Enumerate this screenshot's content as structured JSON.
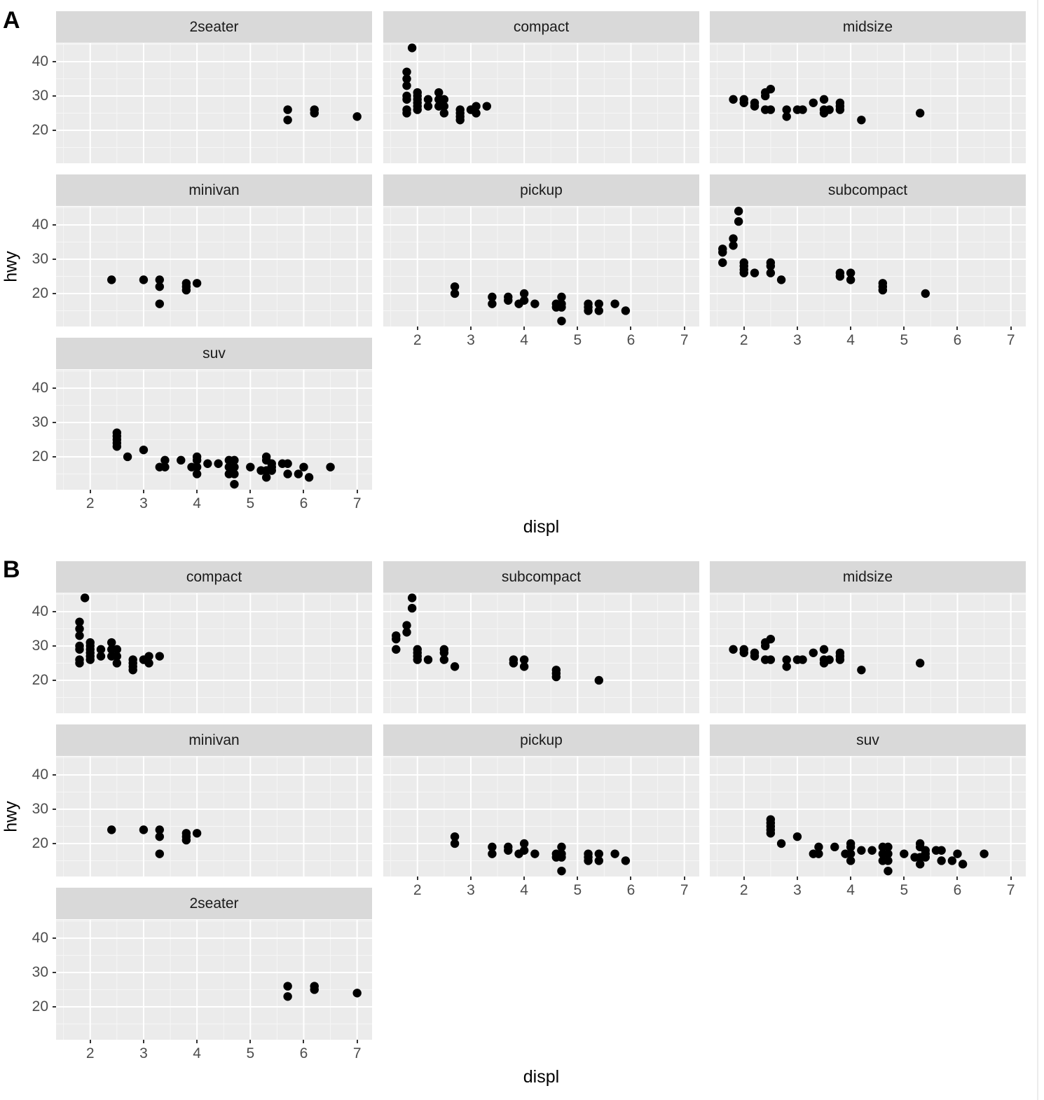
{
  "chart_data": [
    {
      "type": "scatter",
      "figure_label": "A",
      "title": "",
      "xlabel": "displ",
      "ylabel": "hwy",
      "xlim": [
        1.36,
        7.28
      ],
      "ylim": [
        10.4,
        45.3
      ],
      "x_ticks": [
        2,
        3,
        4,
        5,
        6,
        7
      ],
      "y_ticks": [
        20,
        30,
        40
      ],
      "grid": true,
      "facet_order": [
        "2seater",
        "compact",
        "midsize",
        "minivan",
        "pickup",
        "subcompact",
        "suv"
      ],
      "panels": [
        {
          "label": "2seater",
          "points": [
            [
              5.7,
              26
            ],
            [
              5.7,
              23
            ],
            [
              6.2,
              26
            ],
            [
              6.2,
              25
            ],
            [
              7.0,
              24
            ]
          ]
        },
        {
          "label": "compact",
          "points": [
            [
              1.8,
              37
            ],
            [
              1.8,
              35
            ],
            [
              1.8,
              33
            ],
            [
              1.8,
              29
            ],
            [
              1.8,
              30
            ],
            [
              1.8,
              26
            ],
            [
              1.8,
              25
            ],
            [
              1.9,
              44
            ],
            [
              2.0,
              31
            ],
            [
              2.0,
              30
            ],
            [
              2.0,
              29
            ],
            [
              2.0,
              28
            ],
            [
              2.0,
              27
            ],
            [
              2.0,
              26
            ],
            [
              2.2,
              29
            ],
            [
              2.2,
              27
            ],
            [
              2.4,
              31
            ],
            [
              2.4,
              29
            ],
            [
              2.4,
              27
            ],
            [
              2.5,
              29
            ],
            [
              2.5,
              27
            ],
            [
              2.5,
              25
            ],
            [
              2.8,
              26
            ],
            [
              2.8,
              25
            ],
            [
              2.8,
              24
            ],
            [
              2.8,
              23
            ],
            [
              3.0,
              26
            ],
            [
              3.1,
              27
            ],
            [
              3.1,
              25
            ],
            [
              3.3,
              27
            ]
          ]
        },
        {
          "label": "midsize",
          "points": [
            [
              1.8,
              29
            ],
            [
              2.0,
              29
            ],
            [
              2.0,
              28
            ],
            [
              2.2,
              28
            ],
            [
              2.2,
              27
            ],
            [
              2.4,
              31
            ],
            [
              2.4,
              30
            ],
            [
              2.5,
              32
            ],
            [
              2.4,
              26
            ],
            [
              2.5,
              26
            ],
            [
              2.8,
              26
            ],
            [
              2.8,
              24
            ],
            [
              3.0,
              26
            ],
            [
              3.1,
              26
            ],
            [
              3.3,
              28
            ],
            [
              3.5,
              29
            ],
            [
              3.5,
              26
            ],
            [
              3.5,
              25
            ],
            [
              3.6,
              26
            ],
            [
              3.8,
              28
            ],
            [
              3.8,
              27
            ],
            [
              3.8,
              26
            ],
            [
              4.2,
              23
            ],
            [
              5.3,
              25
            ]
          ]
        },
        {
          "label": "minivan",
          "points": [
            [
              2.4,
              24
            ],
            [
              3.0,
              24
            ],
            [
              3.3,
              24
            ],
            [
              3.3,
              22
            ],
            [
              3.3,
              17
            ],
            [
              3.8,
              23
            ],
            [
              3.8,
              22
            ],
            [
              3.8,
              21
            ],
            [
              4.0,
              23
            ]
          ]
        },
        {
          "label": "pickup",
          "points": [
            [
              2.7,
              22
            ],
            [
              2.7,
              20
            ],
            [
              3.4,
              19
            ],
            [
              3.4,
              17
            ],
            [
              3.7,
              19
            ],
            [
              3.7,
              18
            ],
            [
              3.9,
              17
            ],
            [
              4.0,
              20
            ],
            [
              4.0,
              18
            ],
            [
              4.2,
              17
            ],
            [
              4.6,
              17
            ],
            [
              4.6,
              16
            ],
            [
              4.7,
              19
            ],
            [
              4.7,
              17
            ],
            [
              4.7,
              16
            ],
            [
              4.7,
              12
            ],
            [
              5.2,
              17
            ],
            [
              5.2,
              16
            ],
            [
              5.2,
              15
            ],
            [
              5.4,
              17
            ],
            [
              5.4,
              15
            ],
            [
              5.7,
              17
            ],
            [
              5.9,
              15
            ]
          ]
        },
        {
          "label": "subcompact",
          "points": [
            [
              1.6,
              33
            ],
            [
              1.6,
              32
            ],
            [
              1.6,
              29
            ],
            [
              1.8,
              36
            ],
            [
              1.8,
              34
            ],
            [
              1.9,
              44
            ],
            [
              1.9,
              41
            ],
            [
              2.0,
              29
            ],
            [
              2.0,
              28
            ],
            [
              2.0,
              27
            ],
            [
              2.0,
              26
            ],
            [
              2.2,
              26
            ],
            [
              2.5,
              29
            ],
            [
              2.5,
              28
            ],
            [
              2.5,
              26
            ],
            [
              2.7,
              24
            ],
            [
              3.8,
              26
            ],
            [
              3.8,
              25
            ],
            [
              4.0,
              26
            ],
            [
              4.0,
              24
            ],
            [
              4.6,
              23
            ],
            [
              4.6,
              22
            ],
            [
              4.6,
              21
            ],
            [
              5.4,
              20
            ]
          ]
        },
        {
          "label": "suv",
          "points": [
            [
              2.5,
              27
            ],
            [
              2.5,
              26
            ],
            [
              2.5,
              25
            ],
            [
              2.5,
              24
            ],
            [
              2.5,
              23
            ],
            [
              2.7,
              20
            ],
            [
              3.0,
              22
            ],
            [
              3.3,
              17
            ],
            [
              3.4,
              19
            ],
            [
              3.4,
              17
            ],
            [
              3.7,
              19
            ],
            [
              3.9,
              17
            ],
            [
              4.0,
              20
            ],
            [
              4.0,
              19
            ],
            [
              4.0,
              17
            ],
            [
              4.0,
              15
            ],
            [
              4.2,
              18
            ],
            [
              4.4,
              18
            ],
            [
              4.6,
              19
            ],
            [
              4.6,
              17
            ],
            [
              4.6,
              15
            ],
            [
              4.7,
              19
            ],
            [
              4.7,
              17
            ],
            [
              4.7,
              15
            ],
            [
              4.7,
              12
            ],
            [
              5.0,
              17
            ],
            [
              5.2,
              16
            ],
            [
              5.3,
              20
            ],
            [
              5.3,
              19
            ],
            [
              5.3,
              16
            ],
            [
              5.3,
              14
            ],
            [
              5.4,
              18
            ],
            [
              5.4,
              17
            ],
            [
              5.4,
              16
            ],
            [
              5.6,
              18
            ],
            [
              5.7,
              18
            ],
            [
              5.7,
              15
            ],
            [
              5.9,
              15
            ],
            [
              6.0,
              17
            ],
            [
              6.1,
              14
            ],
            [
              6.5,
              17
            ]
          ]
        }
      ]
    },
    {
      "type": "scatter",
      "figure_label": "B",
      "title": "",
      "xlabel": "displ",
      "ylabel": "hwy",
      "xlim": [
        1.36,
        7.28
      ],
      "ylim": [
        10.4,
        45.3
      ],
      "x_ticks": [
        2,
        3,
        4,
        5,
        6,
        7
      ],
      "y_ticks": [
        20,
        30,
        40
      ],
      "grid": true,
      "facet_order": [
        "compact",
        "subcompact",
        "midsize",
        "minivan",
        "pickup",
        "suv",
        "2seater"
      ],
      "panels": [
        {
          "label": "compact",
          "same_as": "A.compact"
        },
        {
          "label": "subcompact",
          "same_as": "A.subcompact"
        },
        {
          "label": "midsize",
          "same_as": "A.midsize"
        },
        {
          "label": "minivan",
          "same_as": "A.minivan"
        },
        {
          "label": "pickup",
          "same_as": "A.pickup"
        },
        {
          "label": "suv",
          "same_as": "A.suv"
        },
        {
          "label": "2seater",
          "same_as": "A.2seater"
        }
      ]
    }
  ],
  "figures": [
    {
      "label": "A",
      "xlabel": "displ",
      "ylabel": "hwy",
      "strips": [
        "2seater",
        "compact",
        "midsize",
        "minivan",
        "pickup",
        "subcompact",
        "suv"
      ]
    },
    {
      "label": "B",
      "xlabel": "displ",
      "ylabel": "hwy",
      "strips": [
        "compact",
        "subcompact",
        "midsize",
        "minivan",
        "pickup",
        "suv",
        "2seater"
      ]
    }
  ],
  "axis": {
    "y_tick_labels": [
      "40",
      "30",
      "20"
    ],
    "x_tick_labels": [
      "2",
      "3",
      "4",
      "5",
      "6",
      "7"
    ]
  },
  "colors": {
    "panel_bg": "#ebebeb",
    "strip_bg": "#d9d9d9",
    "grid": "#ffffff",
    "point": "#000000",
    "tick_text": "#4d4d4d"
  }
}
